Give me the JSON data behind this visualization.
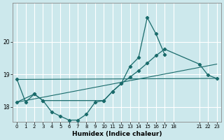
{
  "xlabel": "Humidex (Indice chaleur)",
  "ylabel": "",
  "bg_color": "#cce8ec",
  "grid_color": "#ffffff",
  "line_color": "#1a6b6b",
  "marker_color": "#1a6b6b",
  "xlim": [
    -0.5,
    23.5
  ],
  "ylim": [
    17.55,
    21.2
  ],
  "yticks": [
    18,
    19,
    20
  ],
  "xtick_positions": [
    0,
    1,
    2,
    3,
    4,
    5,
    6,
    7,
    8,
    9,
    10,
    11,
    12,
    13,
    14,
    15,
    16,
    17,
    18,
    21,
    22,
    23
  ],
  "xtick_labels": [
    "0",
    "1",
    "2",
    "3",
    "4",
    "5",
    "6",
    "7",
    "8",
    "9",
    "10",
    "11",
    "12",
    "13",
    "14",
    "15",
    "16",
    "17",
    "18",
    "21",
    "22",
    "23"
  ],
  "curve1_x": [
    0,
    1,
    2,
    3,
    4,
    5,
    6,
    7,
    8,
    9,
    10,
    11,
    12,
    13,
    14,
    15,
    16,
    17
  ],
  "curve1_y": [
    18.85,
    18.15,
    18.4,
    18.2,
    17.85,
    17.72,
    17.6,
    17.6,
    17.78,
    18.15,
    18.2,
    18.48,
    18.72,
    19.25,
    19.52,
    20.75,
    20.25,
    19.62
  ],
  "curve2_x": [
    0,
    2,
    3,
    10,
    11,
    12,
    13,
    14,
    15,
    16,
    17,
    21,
    22,
    23
  ],
  "curve2_y": [
    18.15,
    18.4,
    18.2,
    18.2,
    18.48,
    18.72,
    18.92,
    19.12,
    19.35,
    19.58,
    19.78,
    19.32,
    18.98,
    18.88
  ],
  "line3_x": [
    0,
    23
  ],
  "line3_y": [
    18.15,
    19.32
  ],
  "line4_x": [
    0,
    23
  ],
  "line4_y": [
    18.85,
    18.88
  ]
}
